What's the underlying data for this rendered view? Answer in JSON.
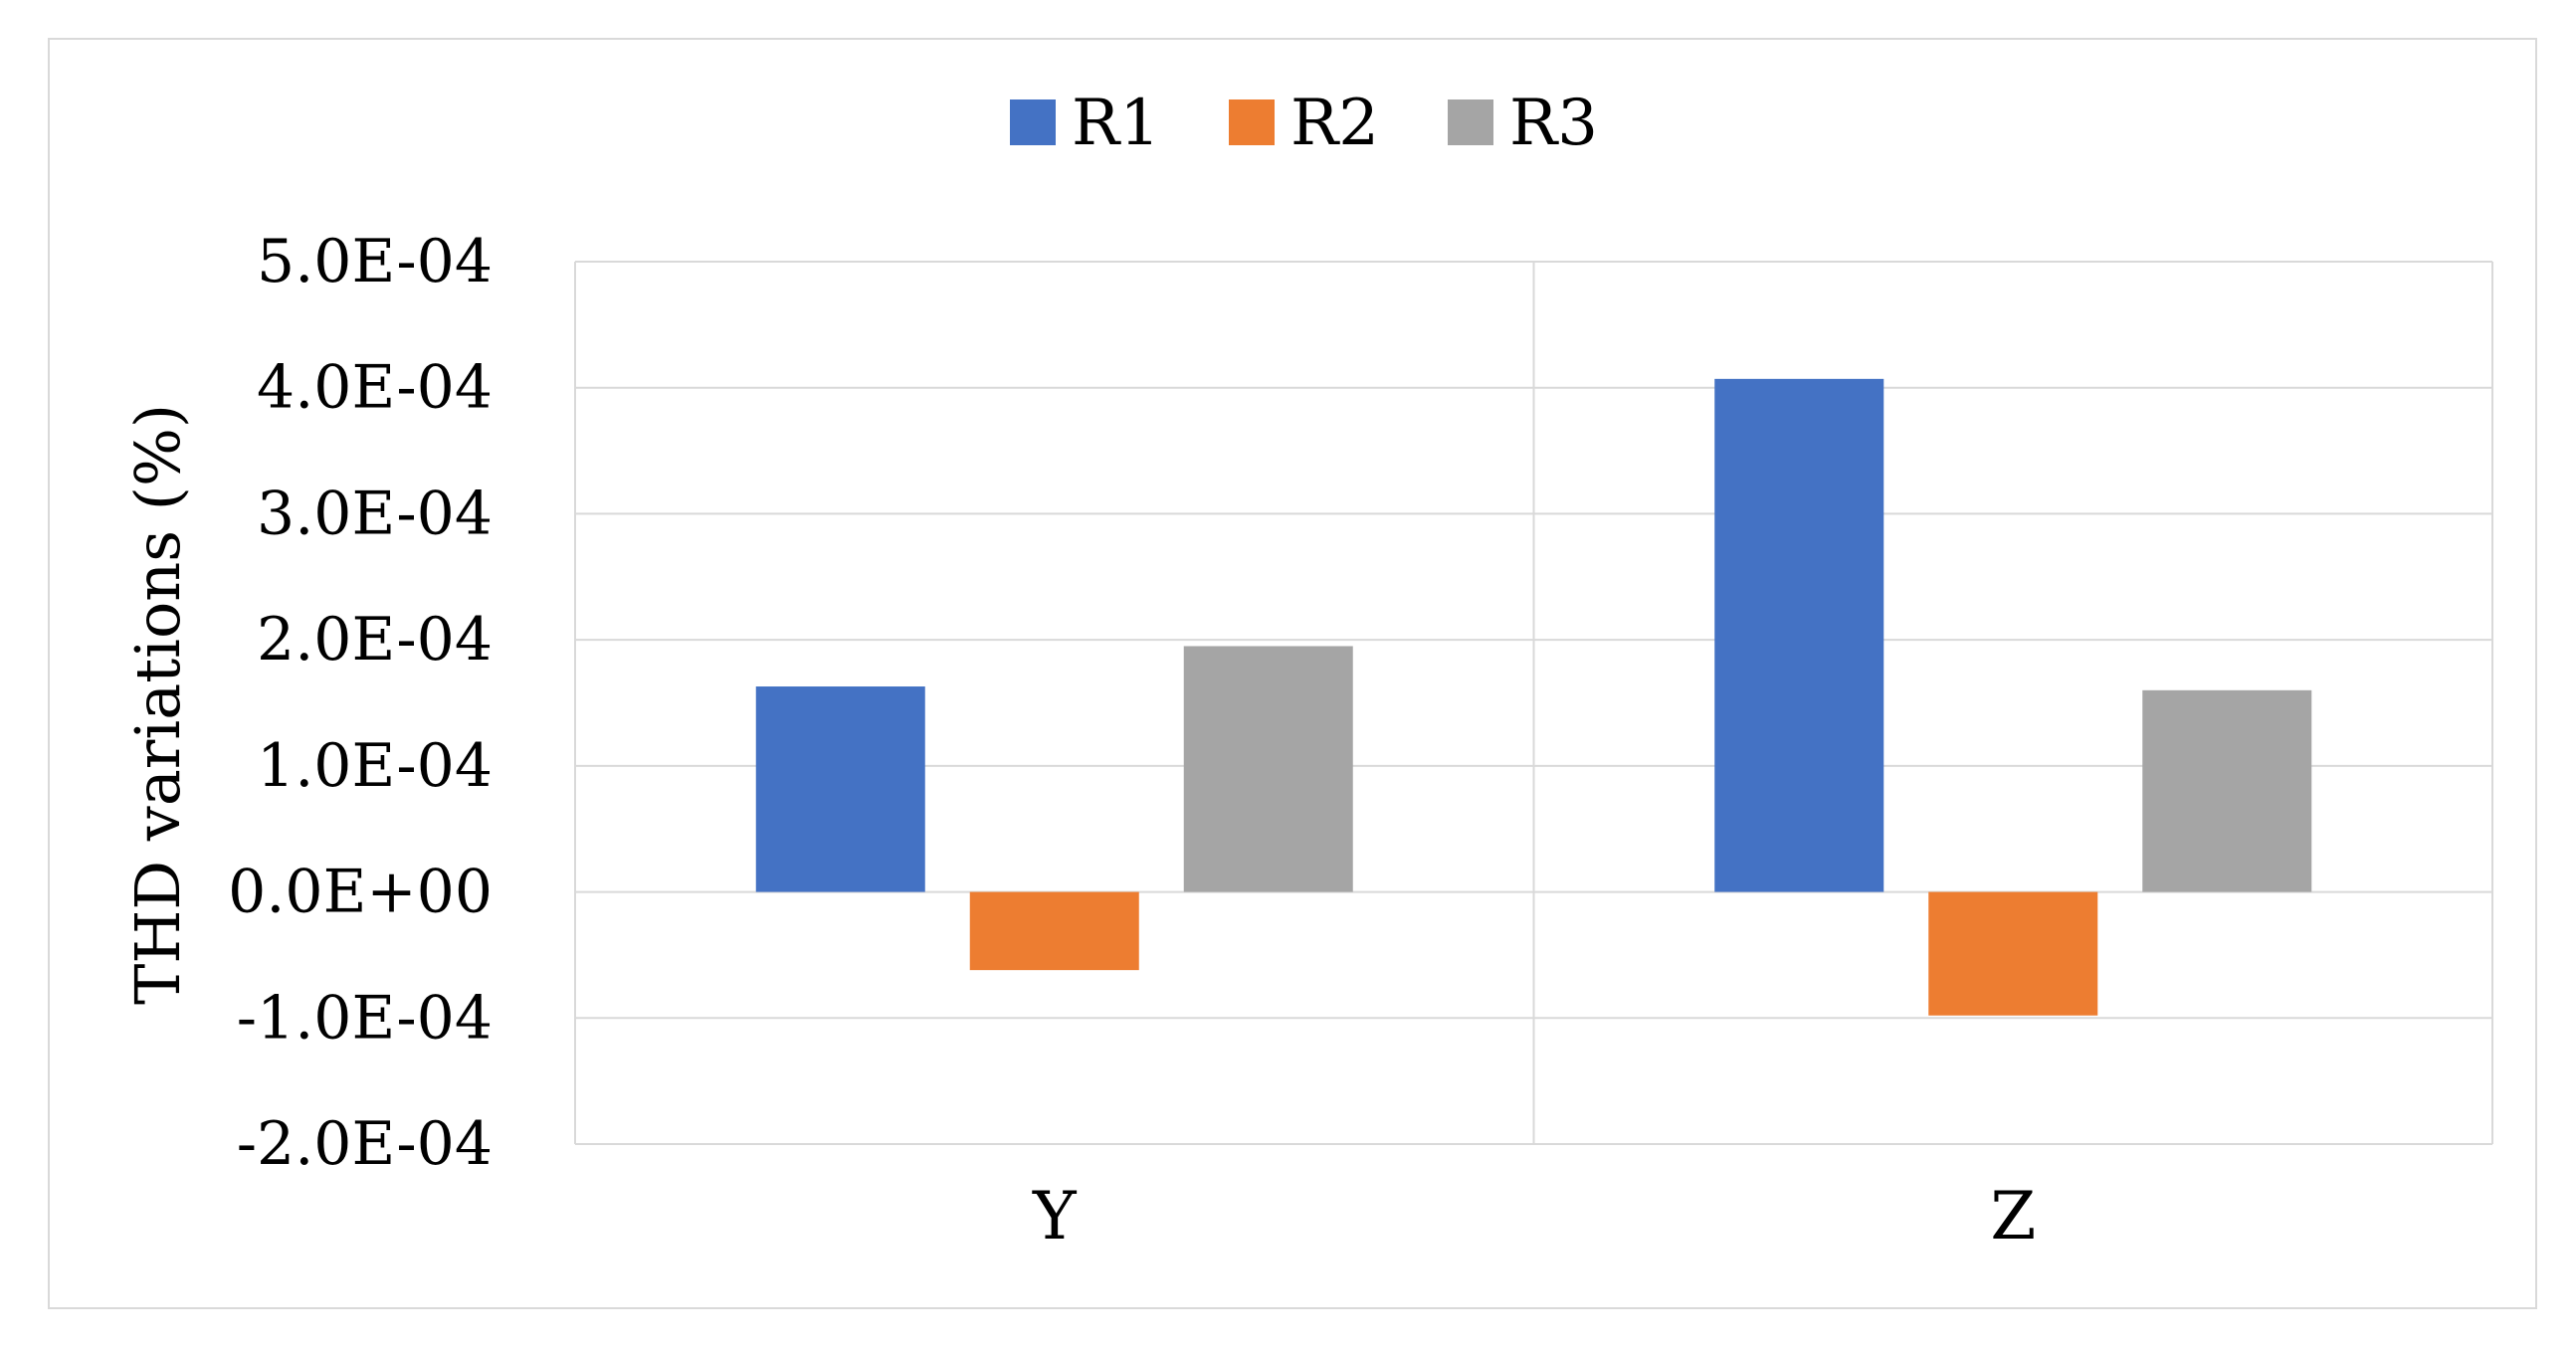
{
  "chart_data": {
    "type": "bar",
    "categories": [
      "Y",
      "Z"
    ],
    "series": [
      {
        "name": "R1",
        "values": [
          0.000163,
          0.000407
        ],
        "color": "#4472c4"
      },
      {
        "name": "R2",
        "values": [
          -6.2e-05,
          -9.8e-05
        ],
        "color": "#ed7d31"
      },
      {
        "name": "R3",
        "values": [
          0.000195,
          0.00016
        ],
        "color": "#a5a5a5"
      }
    ],
    "ylabel": "THD variations (%)",
    "xlabel": "",
    "ylim": [
      -0.0002,
      0.0005
    ],
    "yticks": [
      -0.0002,
      -0.0001,
      0.0,
      0.0001,
      0.0002,
      0.0003,
      0.0004,
      0.0005
    ],
    "ytick_labels": [
      "-2.0E-04",
      "-1.0E-04",
      "0.0E+00",
      "1.0E-04",
      "2.0E-04",
      "3.0E-04",
      "4.0E-04",
      "5.0E-04"
    ],
    "grid": true,
    "legend_position": "top-center",
    "gridline_color": "#d9d9d9"
  }
}
